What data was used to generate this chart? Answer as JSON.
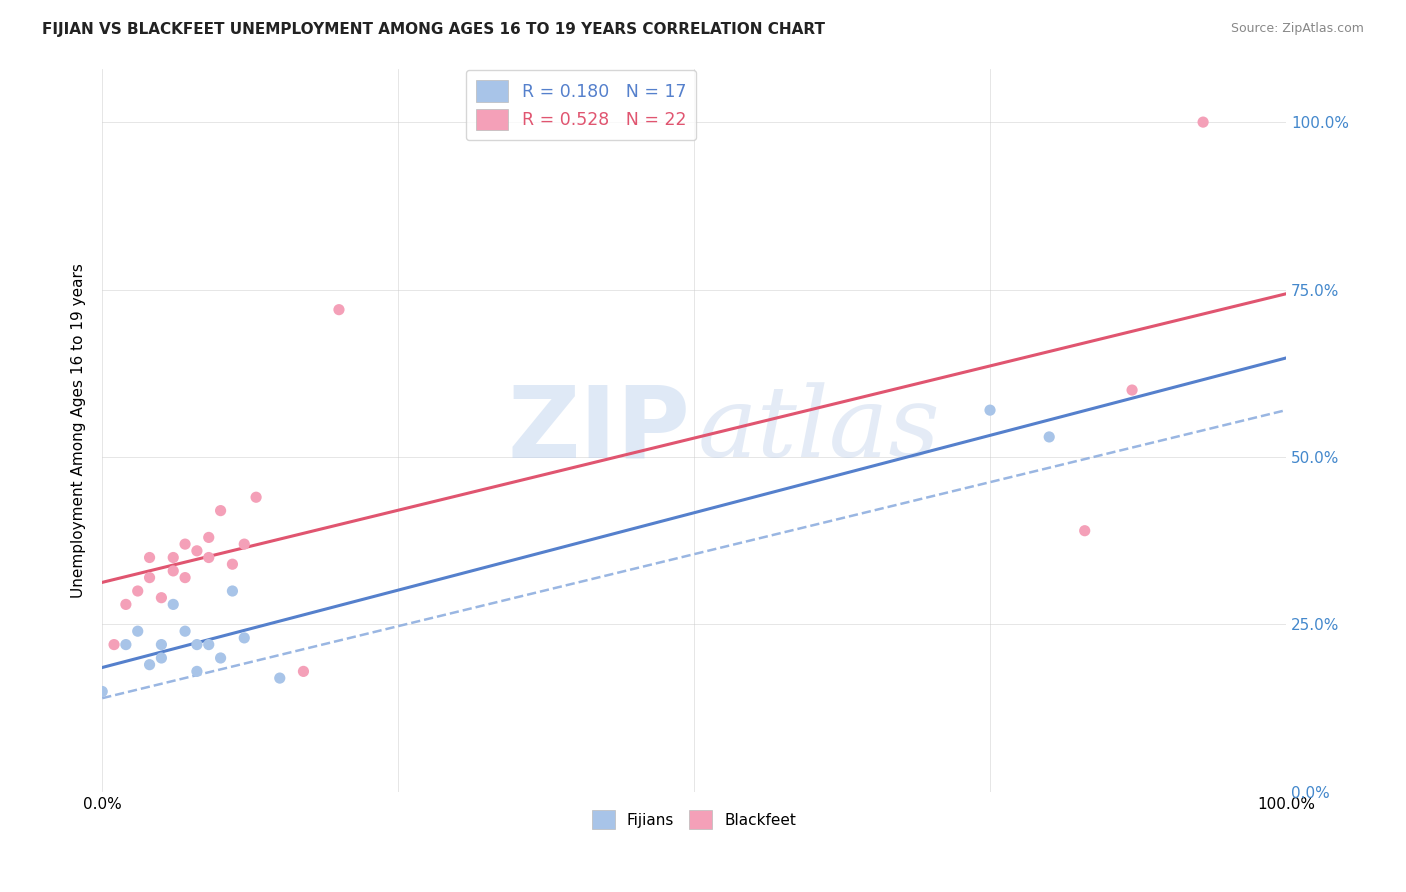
{
  "title": "FIJIAN VS BLACKFEET UNEMPLOYMENT AMONG AGES 16 TO 19 YEARS CORRELATION CHART",
  "source": "Source: ZipAtlas.com",
  "ylabel": "Unemployment Among Ages 16 to 19 years",
  "fijian_color": "#a8c4e8",
  "blackfeet_color": "#f4a0b8",
  "fijian_line_color": "#5580cc",
  "blackfeet_line_color": "#e05570",
  "dashed_line_color": "#88aadd",
  "right_axis_color": "#4488cc",
  "fijian_R": "0.180",
  "fijian_N": "17",
  "blackfeet_R": "0.528",
  "blackfeet_N": "22",
  "fijian_x": [
    0.0,
    0.02,
    0.03,
    0.04,
    0.05,
    0.05,
    0.06,
    0.07,
    0.08,
    0.08,
    0.09,
    0.1,
    0.11,
    0.12,
    0.15,
    0.75,
    0.8
  ],
  "fijian_y": [
    0.15,
    0.22,
    0.24,
    0.19,
    0.2,
    0.22,
    0.28,
    0.24,
    0.18,
    0.22,
    0.22,
    0.2,
    0.3,
    0.23,
    0.17,
    0.57,
    0.53
  ],
  "blackfeet_x": [
    0.01,
    0.02,
    0.03,
    0.04,
    0.04,
    0.05,
    0.06,
    0.06,
    0.07,
    0.07,
    0.08,
    0.09,
    0.09,
    0.1,
    0.11,
    0.12,
    0.13,
    0.17,
    0.2,
    0.83,
    0.87,
    0.93
  ],
  "blackfeet_y": [
    0.22,
    0.28,
    0.3,
    0.32,
    0.35,
    0.29,
    0.33,
    0.35,
    0.32,
    0.37,
    0.36,
    0.38,
    0.35,
    0.42,
    0.34,
    0.37,
    0.44,
    0.18,
    0.72,
    0.39,
    0.6,
    1.0
  ],
  "xlim": [
    0,
    1
  ],
  "ylim": [
    0,
    1.08
  ],
  "xticks": [
    0.0,
    0.25,
    0.5,
    0.75,
    1.0
  ],
  "yticks": [
    0.0,
    0.25,
    0.5,
    0.75,
    1.0
  ],
  "watermark_zip": "ZIP",
  "watermark_atlas": "atlas",
  "grid_color": "#cccccc",
  "background_color": "#ffffff"
}
